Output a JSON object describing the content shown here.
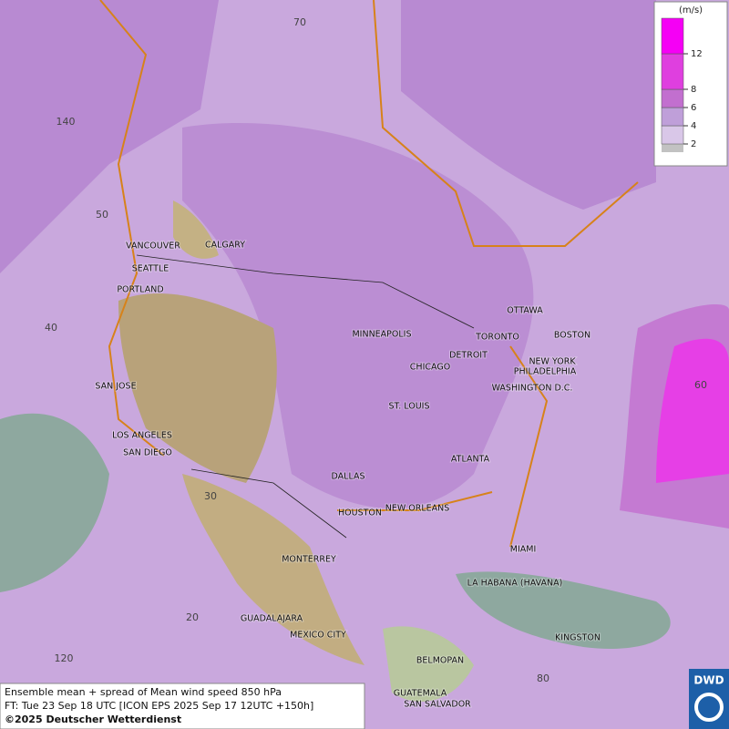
{
  "legend": {
    "unit": "(m/s)",
    "ticks": [
      2,
      4,
      6,
      8,
      12
    ],
    "colors": [
      "#d9c7e8",
      "#bf9fd9",
      "#c26fcf",
      "#df3fdf",
      "#f500f5"
    ]
  },
  "graticule_labels": [
    "70",
    "140",
    "50",
    "40",
    "30",
    "20",
    "120",
    "60",
    "80"
  ],
  "cities": [
    "VANCOUVER",
    "CALGARY",
    "SEATTLE",
    "PORTLAND",
    "MINNEAPOLIS",
    "OTTAWA",
    "TORONTO",
    "BOSTON",
    "DETROIT",
    "NEW YORK",
    "CHICAGO",
    "PHILADELPHIA",
    "SAN JOSE",
    "WASHINGTON D.C.",
    "ST. LOUIS",
    "LOS ANGELES",
    "SAN DIEGO",
    "ATLANTA",
    "DALLAS",
    "HOUSTON",
    "NEW ORLEANS",
    "MIAMI",
    "MONTERREY",
    "LA HABANA (HAVANA)",
    "GUADALAJARA",
    "MEXICO CITY",
    "KINGSTON",
    "BELMOPAN",
    "GUATEMALA",
    "SAN SALVADOR"
  ],
  "caption": {
    "line1": "Ensemble mean + spread of Mean wind speed 850 hPa",
    "line2": "FT: Tue 23 Sep 18 UTC [ICON EPS 2025 Sep 17 12UTC +150h]",
    "line3": "©2025 Deutscher Wetterdienst"
  },
  "logo": "DWD"
}
